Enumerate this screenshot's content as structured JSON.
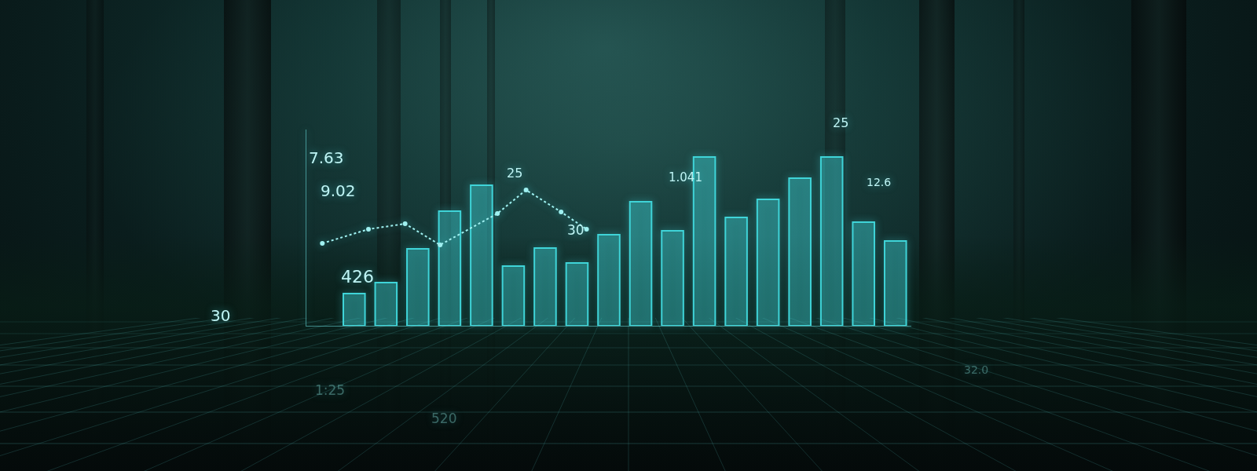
{
  "chart_data": {
    "type": "bar",
    "xlim": [
      -0.5,
      18.5
    ],
    "ylim": [
      0,
      250
    ],
    "tick_labels": false,
    "grid": false,
    "series": [
      {
        "type": "bar",
        "color": "#3fd4d8",
        "x": [
          1,
          2,
          3,
          4,
          5,
          6,
          7,
          8,
          9,
          10,
          11,
          12,
          13,
          14,
          15,
          16,
          17,
          18
        ],
        "values": [
          41,
          55,
          98,
          146,
          179,
          76,
          99,
          80,
          116,
          158,
          121,
          215,
          138,
          161,
          188,
          215,
          132,
          108
        ]
      },
      {
        "type": "line",
        "color": "#9ff0f0",
        "line_style": "dotted",
        "marker": "circle",
        "x": [
          0,
          1.45,
          2.6,
          3.7,
          5.5,
          6.4,
          7.5,
          8.3
        ],
        "values": [
          105,
          123,
          130,
          103,
          143,
          173,
          145,
          123
        ]
      }
    ],
    "annotations": [
      "7.63",
      "9.02",
      "426",
      "30",
      "25",
      "30",
      "1.041",
      "25",
      "12.6",
      "1:25",
      "520",
      "32.0"
    ]
  }
}
